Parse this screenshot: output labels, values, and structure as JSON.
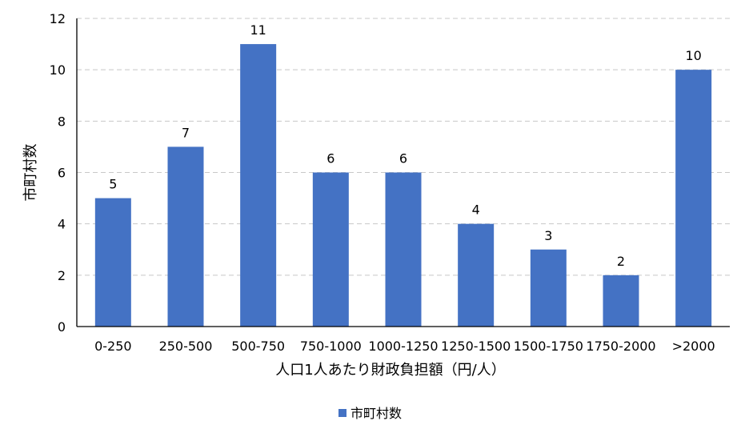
{
  "chart_data": {
    "type": "bar",
    "categories": [
      "0-250",
      "250-500",
      "500-750",
      "750-1000",
      "1000-1250",
      "1250-1500",
      "1500-1750",
      "1750-2000",
      ">2000"
    ],
    "series": [
      {
        "name": "市町村数",
        "values": [
          5,
          7,
          11,
          6,
          6,
          4,
          3,
          2,
          10
        ],
        "color": "#4472C4"
      }
    ],
    "xlabel": "人口1人あたり財政負担額（円/人）",
    "ylabel": "市町村数",
    "ylim": [
      0,
      12
    ],
    "yticks": [
      0,
      2,
      4,
      6,
      8,
      10,
      12
    ],
    "grid": true,
    "legend": "bottom",
    "data_labels": true
  }
}
